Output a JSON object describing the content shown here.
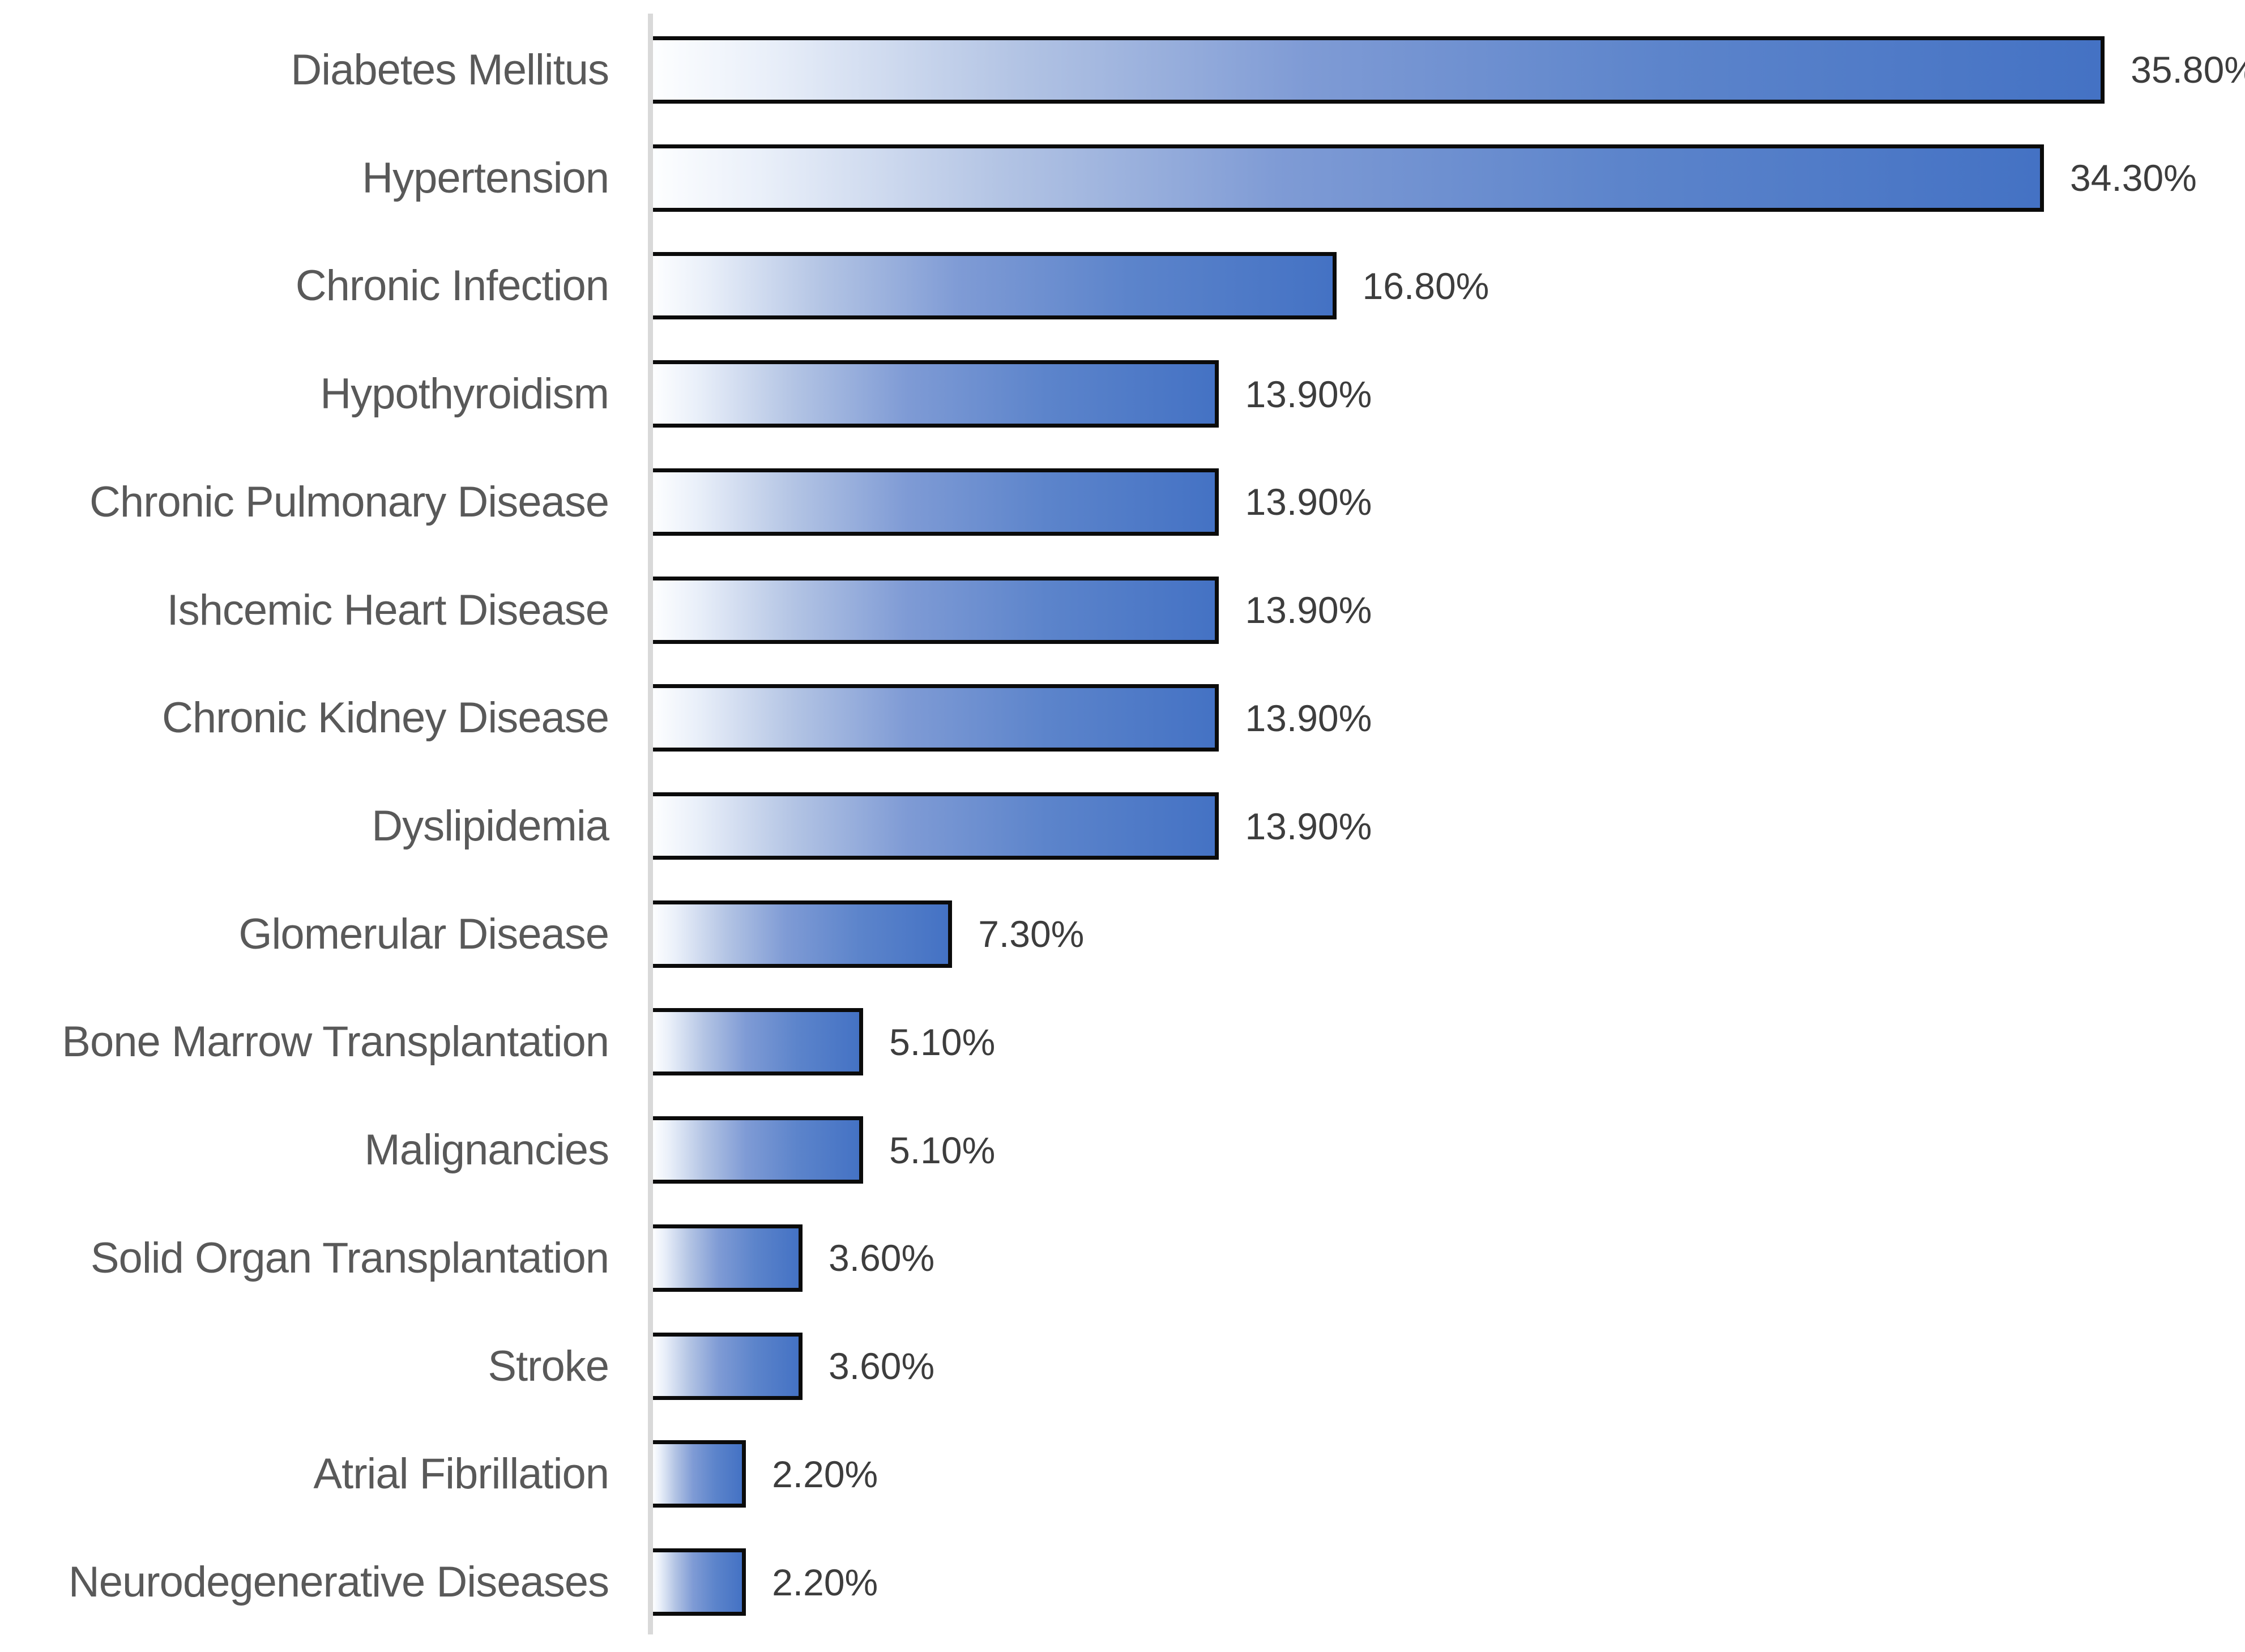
{
  "chart_data": {
    "type": "bar",
    "orientation": "horizontal",
    "title": "",
    "xlabel": "",
    "ylabel": "",
    "grid": false,
    "legend": false,
    "xlim": [
      0,
      40
    ],
    "categories": [
      "Diabetes Mellitus",
      "Hypertension",
      "Chronic Infection",
      "Hypothyroidism",
      "Chronic Pulmonary Disease",
      "Ishcemic Heart Disease",
      "Chronic Kidney Disease",
      "Dyslipidemia",
      "Glomerular Disease",
      "Bone Marrow Transplantation",
      "Malignancies",
      "Solid Organ Transplantation",
      "Stroke",
      "Atrial Fibrillation",
      "Neurodegenerative Diseases"
    ],
    "values": [
      35.8,
      34.3,
      16.8,
      13.9,
      13.9,
      13.9,
      13.9,
      13.9,
      7.3,
      5.1,
      5.1,
      3.6,
      3.6,
      2.2,
      2.2
    ],
    "value_labels": [
      "35.80%",
      "34.30%",
      "16.80%",
      "13.90%",
      "13.90%",
      "13.90%",
      "13.90%",
      "13.90%",
      "7.30%",
      "5.10%",
      "5.10%",
      "3.60%",
      "3.60%",
      "2.20%",
      "2.20%"
    ],
    "colors": {
      "bar_gradient_start": "#ffffff",
      "bar_gradient_end": "#4472c4",
      "bar_border": "#000000",
      "axis_line": "#d9d9d9",
      "category_label_text": "#595959",
      "value_label_text": "#3d3d3d",
      "background": "#ffffff"
    }
  }
}
